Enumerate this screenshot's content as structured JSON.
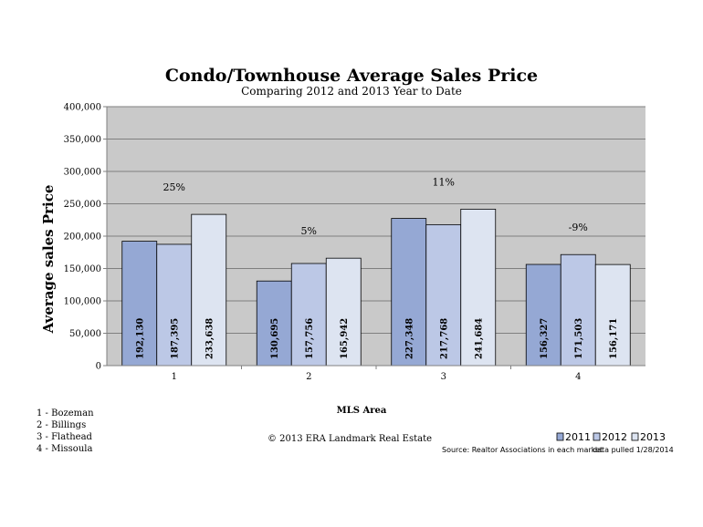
{
  "chart_data": {
    "type": "bar",
    "title": "Condo/Townhouse Average Sales Price",
    "subtitle": "Comparing 2012 and 2013 Year to Date",
    "xlabel": "MLS Area",
    "ylabel": "Average sales Price",
    "ylim": [
      0,
      400000
    ],
    "yticks": [
      "0",
      "50,000",
      "100,000",
      "150,000",
      "200,000",
      "250,000",
      "300,000",
      "350,000",
      "400,000"
    ],
    "grid": true,
    "categories": [
      "1",
      "2",
      "3",
      "4"
    ],
    "series": [
      {
        "name": "2011",
        "color": "#95a8d4",
        "values": [
          192130,
          130695,
          227348,
          156327
        ],
        "labels": [
          "192,130",
          "130,695",
          "227,348",
          "156,327"
        ]
      },
      {
        "name": "2012",
        "color": "#bcc8e6",
        "values": [
          187395,
          157756,
          217768,
          171503
        ],
        "labels": [
          "187,395",
          "157,756",
          "217,768",
          "171,503"
        ]
      },
      {
        "name": "2013",
        "color": "#dde4f1",
        "values": [
          233638,
          165942,
          241684,
          156171
        ],
        "labels": [
          "233,638",
          "165,942",
          "241,684",
          "156,171"
        ]
      }
    ],
    "annotations": [
      "25%",
      "5%",
      "11%",
      "-9%"
    ],
    "legend_position": "bottom-right"
  },
  "area_key": [
    "1 - Bozeman",
    "2 - Billings",
    "3 - Flathead",
    "4 - Missoula"
  ],
  "copyright": "© 2013 ERA Landmark Real Estate",
  "source": "Source: Realtor Associations in each market",
  "data_pulled": "data pulled 1/28/2014",
  "colors": {
    "plot_bg": "#c9c9c9",
    "gridline": "#7f7f7f",
    "bar_stroke": "#000000"
  }
}
